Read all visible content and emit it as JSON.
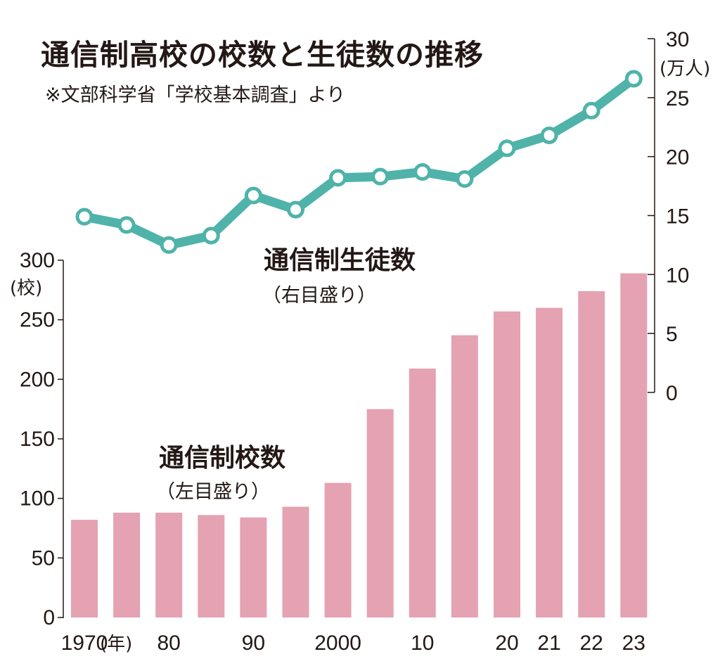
{
  "title": "通信制高校の校数と生徒数の推移",
  "source": "※文部科学省「学校基本調査」より",
  "colors": {
    "bars": "#e4a2b2",
    "line": "#4fb3aa",
    "marker_fill": "#ffffff",
    "axis": "#231815"
  },
  "chart_data": {
    "type": "bar+line",
    "x_labels": [
      "1970",
      "(年)",
      "80",
      "",
      "90",
      "",
      "2000",
      "",
      "10",
      "",
      "20",
      "21",
      "22",
      "23"
    ],
    "x_unit": "(年)",
    "bars": {
      "name": "通信制校数",
      "axis_note": "（左目盛り）",
      "values": [
        82,
        88,
        88,
        86,
        84,
        93,
        113,
        175,
        209,
        237,
        257,
        260,
        274,
        289
      ],
      "axis": {
        "min": 0,
        "max": 300,
        "ticks": [
          0,
          50,
          100,
          150,
          200,
          250,
          300
        ],
        "unit": "(校)"
      }
    },
    "line": {
      "name": "通信制生徒数",
      "axis_note": "（右目盛り）",
      "values": [
        14.9,
        14.2,
        12.5,
        13.3,
        16.7,
        15.5,
        18.2,
        18.3,
        18.7,
        18.1,
        20.7,
        21.8,
        23.9,
        26.6
      ],
      "axis": {
        "min": 0,
        "max": 30,
        "ticks": [
          0,
          5,
          10,
          15,
          20,
          25,
          30
        ],
        "unit": "(万人)"
      }
    }
  }
}
